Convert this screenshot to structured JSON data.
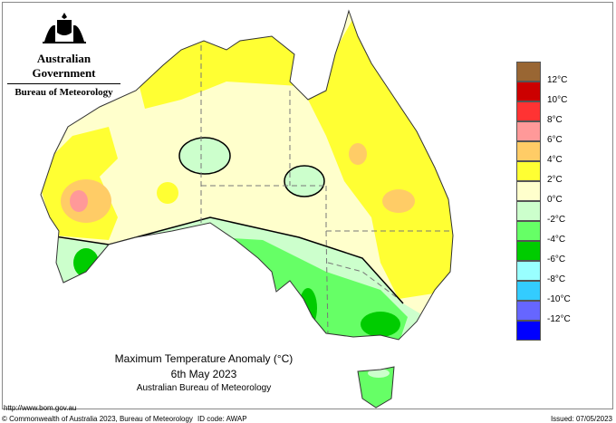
{
  "header": {
    "government": "Australian Government",
    "bureau": "Bureau of Meteorology",
    "logo": "commonwealth-coat-of-arms"
  },
  "map": {
    "title": "Maximum Temperature Anomaly (°C)",
    "date": "6th May 2023",
    "source": "Australian Bureau of Meteorology",
    "id_code": "ID code: AWAP"
  },
  "legend": {
    "items": [
      {
        "label": "12°C",
        "color": "#996633"
      },
      {
        "label": "10°C",
        "color": "#cc0000"
      },
      {
        "label": "8°C",
        "color": "#ff3333"
      },
      {
        "label": "6°C",
        "color": "#ff9999"
      },
      {
        "label": "4°C",
        "color": "#ffcc66"
      },
      {
        "label": "2°C",
        "color": "#ffff33"
      },
      {
        "label": "0°C",
        "color": "#ffffcc"
      },
      {
        "label": "-2°C",
        "color": "#ccffcc"
      },
      {
        "label": "-4°C",
        "color": "#66ff66"
      },
      {
        "label": "-6°C",
        "color": "#00cc00"
      },
      {
        "label": "-8°C",
        "color": "#99ffff"
      },
      {
        "label": "-10°C",
        "color": "#33ccff"
      },
      {
        "label": "-12°C",
        "color": "#6666ff"
      },
      {
        "label": "",
        "color": "#0000ff"
      }
    ]
  },
  "footer": {
    "url": "http://www.bom.gov.au",
    "copyright": "© Commonwealth of Australia 2023, Bureau of Meteorology",
    "id_code": "ID code: AWAP",
    "issued": "Issued: 07/05/2023"
  }
}
